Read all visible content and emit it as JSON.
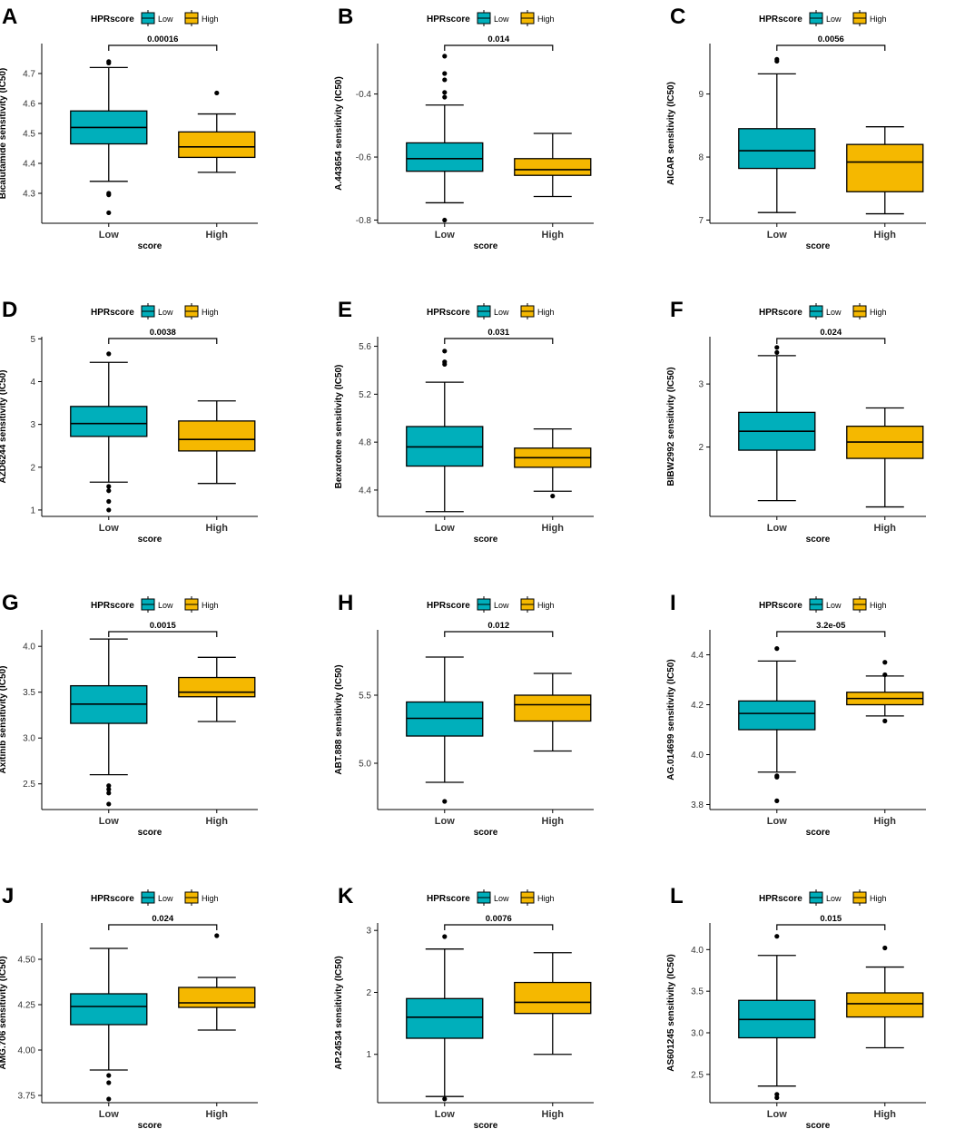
{
  "figure": {
    "legend_title": "HPRscore",
    "legend_labels": [
      "Low",
      "High"
    ],
    "colors": {
      "Low": "#00AFBB",
      "High": "#F5B800",
      "text": "#000000",
      "outlier": "#000000"
    },
    "xlabel": "score"
  },
  "chart_data": [
    {
      "panel": "A",
      "type": "boxplot",
      "ylabel": "Bicalutamide sensitivity (IC50)",
      "pvalue": "0.00016",
      "ylim": [
        4.2,
        4.8
      ],
      "yticks": [
        4.3,
        4.4,
        4.5,
        4.6,
        4.7
      ],
      "ytick_labels": [
        "4.3",
        "4.4",
        "4.5",
        "4.6",
        "4.7"
      ],
      "categories": [
        "Low",
        "High"
      ],
      "boxes": [
        {
          "group": "Low",
          "whisker_low": 4.34,
          "q1": 4.465,
          "median": 4.52,
          "q3": 4.575,
          "whisker_high": 4.72,
          "outliers": [
            4.74,
            4.735,
            4.3,
            4.295,
            4.235
          ]
        },
        {
          "group": "High",
          "whisker_low": 4.37,
          "q1": 4.42,
          "median": 4.455,
          "q3": 4.505,
          "whisker_high": 4.565,
          "outliers": [
            4.635
          ]
        }
      ]
    },
    {
      "panel": "B",
      "type": "boxplot",
      "ylabel": "A.443654 sensitivity (IC50)",
      "pvalue": "0.014",
      "ylim": [
        -0.81,
        -0.24
      ],
      "yticks": [
        -0.8,
        -0.6,
        -0.4
      ],
      "ytick_labels": [
        "-0.8",
        "-0.6",
        "-0.4"
      ],
      "categories": [
        "Low",
        "High"
      ],
      "boxes": [
        {
          "group": "Low",
          "whisker_low": -0.745,
          "q1": -0.645,
          "median": -0.605,
          "q3": -0.555,
          "whisker_high": -0.435,
          "outliers": [
            -0.28,
            -0.335,
            -0.355,
            -0.395,
            -0.41,
            -0.8
          ]
        },
        {
          "group": "High",
          "whisker_low": -0.725,
          "q1": -0.658,
          "median": -0.64,
          "q3": -0.605,
          "whisker_high": -0.525,
          "outliers": []
        }
      ]
    },
    {
      "panel": "C",
      "type": "boxplot",
      "ylabel": "AICAR sensitivity (IC50)",
      "pvalue": "0.0056",
      "ylim": [
        6.95,
        9.8
      ],
      "yticks": [
        7,
        8,
        9
      ],
      "ytick_labels": [
        "7",
        "8",
        "9"
      ],
      "categories": [
        "Low",
        "High"
      ],
      "boxes": [
        {
          "group": "Low",
          "whisker_low": 7.12,
          "q1": 7.82,
          "median": 8.1,
          "q3": 8.45,
          "whisker_high": 9.32,
          "outliers": [
            9.55,
            9.52
          ]
        },
        {
          "group": "High",
          "whisker_low": 7.1,
          "q1": 7.45,
          "median": 7.92,
          "q3": 8.2,
          "whisker_high": 8.48,
          "outliers": []
        }
      ]
    },
    {
      "panel": "D",
      "type": "boxplot",
      "ylabel": "AZD6244 sensitivity (IC50)",
      "pvalue": "0.0038",
      "ylim": [
        0.85,
        5.05
      ],
      "yticks": [
        1,
        2,
        3,
        4,
        5
      ],
      "ytick_labels": [
        "1",
        "2",
        "3",
        "4",
        "5"
      ],
      "categories": [
        "Low",
        "High"
      ],
      "boxes": [
        {
          "group": "Low",
          "whisker_low": 1.65,
          "q1": 2.72,
          "median": 3.02,
          "q3": 3.42,
          "whisker_high": 4.45,
          "outliers": [
            4.65,
            1.55,
            1.45,
            1.2,
            1.0
          ]
        },
        {
          "group": "High",
          "whisker_low": 1.62,
          "q1": 2.38,
          "median": 2.65,
          "q3": 3.08,
          "whisker_high": 3.55,
          "outliers": []
        }
      ]
    },
    {
      "panel": "E",
      "type": "boxplot",
      "ylabel": "Bexarotene sensitivity (IC50)",
      "pvalue": "0.031",
      "ylim": [
        4.18,
        5.68
      ],
      "yticks": [
        4.4,
        4.8,
        5.2,
        5.6
      ],
      "ytick_labels": [
        "4.4",
        "4.8",
        "5.2",
        "5.6"
      ],
      "categories": [
        "Low",
        "High"
      ],
      "boxes": [
        {
          "group": "Low",
          "whisker_low": 4.22,
          "q1": 4.6,
          "median": 4.76,
          "q3": 4.93,
          "whisker_high": 5.3,
          "outliers": [
            5.56,
            5.47,
            5.45
          ]
        },
        {
          "group": "High",
          "whisker_low": 4.39,
          "q1": 4.59,
          "median": 4.67,
          "q3": 4.75,
          "whisker_high": 4.91,
          "outliers": [
            4.35
          ]
        }
      ]
    },
    {
      "panel": "F",
      "type": "boxplot",
      "ylabel": "BIBW2992 sensitivity (IC50)",
      "pvalue": "0.024",
      "ylim": [
        0.9,
        3.75
      ],
      "yticks": [
        2,
        3
      ],
      "ytick_labels": [
        "2",
        "3"
      ],
      "categories": [
        "Low",
        "High"
      ],
      "boxes": [
        {
          "group": "Low",
          "whisker_low": 1.15,
          "q1": 1.95,
          "median": 2.25,
          "q3": 2.55,
          "whisker_high": 3.45,
          "outliers": [
            3.58,
            3.5
          ]
        },
        {
          "group": "High",
          "whisker_low": 1.05,
          "q1": 1.82,
          "median": 2.08,
          "q3": 2.33,
          "whisker_high": 2.62,
          "outliers": []
        }
      ]
    },
    {
      "panel": "G",
      "type": "boxplot",
      "ylabel": "Axitinib sensitivity (IC50)",
      "pvalue": "0.0015",
      "ylim": [
        2.22,
        4.18
      ],
      "yticks": [
        2.5,
        3.0,
        3.5,
        4.0
      ],
      "ytick_labels": [
        "2.5",
        "3.0",
        "3.5",
        "4.0"
      ],
      "categories": [
        "Low",
        "High"
      ],
      "boxes": [
        {
          "group": "Low",
          "whisker_low": 2.6,
          "q1": 3.16,
          "median": 3.37,
          "q3": 3.57,
          "whisker_high": 4.08,
          "outliers": [
            2.48,
            2.44,
            2.4,
            2.28
          ]
        },
        {
          "group": "High",
          "whisker_low": 3.18,
          "q1": 3.45,
          "median": 3.5,
          "q3": 3.66,
          "whisker_high": 3.88,
          "outliers": []
        }
      ]
    },
    {
      "panel": "H",
      "type": "boxplot",
      "ylabel": "ABT.888 sensitivity (IC50)",
      "pvalue": "0.012",
      "ylim": [
        4.66,
        5.98
      ],
      "yticks": [
        5.0,
        5.5
      ],
      "ytick_labels": [
        "5.0",
        "5.5"
      ],
      "categories": [
        "Low",
        "High"
      ],
      "boxes": [
        {
          "group": "Low",
          "whisker_low": 4.86,
          "q1": 5.2,
          "median": 5.33,
          "q3": 5.45,
          "whisker_high": 5.78,
          "outliers": [
            4.72
          ]
        },
        {
          "group": "High",
          "whisker_low": 5.09,
          "q1": 5.31,
          "median": 5.43,
          "q3": 5.5,
          "whisker_high": 5.66,
          "outliers": []
        }
      ]
    },
    {
      "panel": "I",
      "type": "boxplot",
      "ylabel": "AG.014699 sensitivity (IC50)",
      "pvalue": "3.2e-05",
      "ylim": [
        3.78,
        4.5
      ],
      "yticks": [
        3.8,
        4.0,
        4.2,
        4.4
      ],
      "ytick_labels": [
        "3.8",
        "4.0",
        "4.2",
        "4.4"
      ],
      "categories": [
        "Low",
        "High"
      ],
      "boxes": [
        {
          "group": "Low",
          "whisker_low": 3.93,
          "q1": 4.1,
          "median": 4.165,
          "q3": 4.215,
          "whisker_high": 4.375,
          "outliers": [
            4.425,
            3.915,
            3.91,
            3.815
          ]
        },
        {
          "group": "High",
          "whisker_low": 4.155,
          "q1": 4.2,
          "median": 4.225,
          "q3": 4.25,
          "whisker_high": 4.315,
          "outliers": [
            4.37,
            4.32,
            4.135
          ]
        }
      ]
    },
    {
      "panel": "J",
      "type": "boxplot",
      "ylabel": "AMG.706 sensitivity (IC50)",
      "pvalue": "0.024",
      "ylim": [
        3.71,
        4.7
      ],
      "yticks": [
        3.75,
        4.0,
        4.25,
        4.5
      ],
      "ytick_labels": [
        "3.75",
        "4.00",
        "4.25",
        "4.50"
      ],
      "categories": [
        "Low",
        "High"
      ],
      "boxes": [
        {
          "group": "Low",
          "whisker_low": 3.89,
          "q1": 4.14,
          "median": 4.24,
          "q3": 4.31,
          "whisker_high": 4.56,
          "outliers": [
            3.86,
            3.82,
            3.73
          ]
        },
        {
          "group": "High",
          "whisker_low": 4.11,
          "q1": 4.235,
          "median": 4.26,
          "q3": 4.345,
          "whisker_high": 4.4,
          "outliers": [
            4.63
          ]
        }
      ]
    },
    {
      "panel": "K",
      "type": "boxplot",
      "ylabel": "AP.24534 sensitivity (IC50)",
      "pvalue": "0.0076",
      "ylim": [
        0.22,
        3.12
      ],
      "yticks": [
        1,
        2,
        3
      ],
      "ytick_labels": [
        "1",
        "2",
        "3"
      ],
      "categories": [
        "Low",
        "High"
      ],
      "boxes": [
        {
          "group": "Low",
          "whisker_low": 0.32,
          "q1": 1.26,
          "median": 1.6,
          "q3": 1.9,
          "whisker_high": 2.7,
          "outliers": [
            2.9,
            0.28
          ]
        },
        {
          "group": "High",
          "whisker_low": 1.0,
          "q1": 1.66,
          "median": 1.84,
          "q3": 2.16,
          "whisker_high": 2.64,
          "outliers": []
        }
      ]
    },
    {
      "panel": "L",
      "type": "boxplot",
      "ylabel": "AS601245 sensitivity (IC50)",
      "pvalue": "0.015",
      "ylim": [
        2.16,
        4.32
      ],
      "yticks": [
        2.5,
        3.0,
        3.5,
        4.0
      ],
      "ytick_labels": [
        "2.5",
        "3.0",
        "3.5",
        "4.0"
      ],
      "categories": [
        "Low",
        "High"
      ],
      "boxes": [
        {
          "group": "Low",
          "whisker_low": 2.36,
          "q1": 2.94,
          "median": 3.16,
          "q3": 3.39,
          "whisker_high": 3.93,
          "outliers": [
            4.16,
            2.26,
            2.22
          ]
        },
        {
          "group": "High",
          "whisker_low": 2.82,
          "q1": 3.19,
          "median": 3.35,
          "q3": 3.48,
          "whisker_high": 3.79,
          "outliers": [
            4.02
          ]
        }
      ]
    }
  ]
}
